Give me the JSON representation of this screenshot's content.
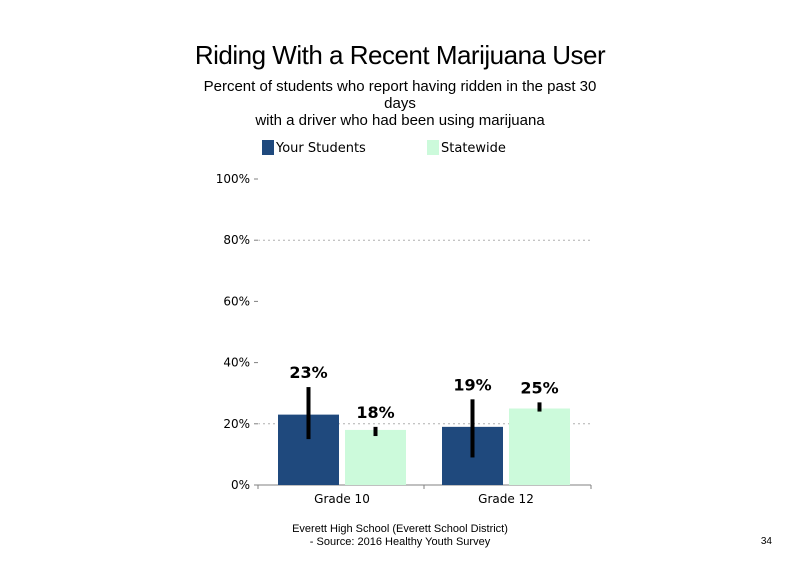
{
  "slide": {
    "title": "Riding With a Recent Marijuana User",
    "subtitle_lines": [
      "Percent of students who report having ridden in the past 30",
      "days",
      "with a driver who had been using marijuana"
    ],
    "footer_lines": [
      "Everett High School (Everett School District)",
      "- Source: 2016 Healthy Youth Survey"
    ],
    "page_number": "34"
  },
  "chart_data": {
    "type": "bar",
    "title": "Riding With a Recent Marijuana User",
    "subtitle": "Percent of students who report having ridden in the past 30 days with a driver who had been using marijuana",
    "xlabel": "",
    "ylabel": "",
    "categories": [
      "Grade 10",
      "Grade 12"
    ],
    "series": [
      {
        "name": "Your Students",
        "color": "#1f497d",
        "values": [
          23,
          19
        ],
        "labels": [
          "23%",
          "19%"
        ],
        "error_low": [
          15,
          9
        ],
        "error_high": [
          32,
          28
        ]
      },
      {
        "name": "Statewide",
        "color": "#ccfadb",
        "values": [
          18,
          25
        ],
        "labels": [
          "18%",
          "25%"
        ],
        "error_low": [
          16,
          24
        ],
        "error_high": [
          19,
          27
        ]
      }
    ],
    "ylim": [
      0,
      100
    ],
    "yticks": [
      0,
      20,
      40,
      60,
      80,
      100
    ],
    "ytick_labels": [
      "0%",
      "20%",
      "40%",
      "60%",
      "80%",
      "100%"
    ],
    "grid": true,
    "gridline_values": [
      20,
      80
    ],
    "legend_position": "top"
  }
}
